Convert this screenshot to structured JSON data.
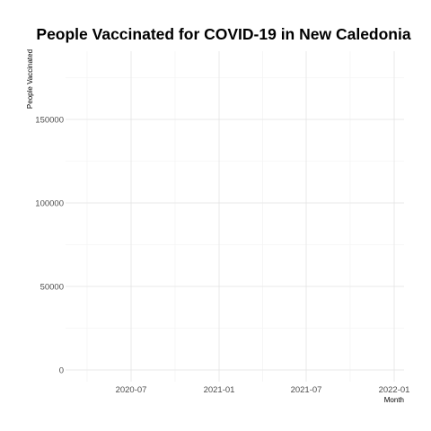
{
  "chart_data": {
    "type": "line",
    "title": "People Vaccinated for COVID-19 in New Caledonia",
    "xlabel": "Month",
    "ylabel": "People Vaccinated",
    "x_ticks": [
      "2020-07",
      "2021-01",
      "2021-07",
      "2022-01"
    ],
    "y_ticks": [
      "0",
      "50000",
      "100000",
      "150000"
    ],
    "ylim": [
      0,
      190000
    ],
    "series": [
      {
        "x": [],
        "y": []
      }
    ],
    "grid": true,
    "legend": "none"
  }
}
